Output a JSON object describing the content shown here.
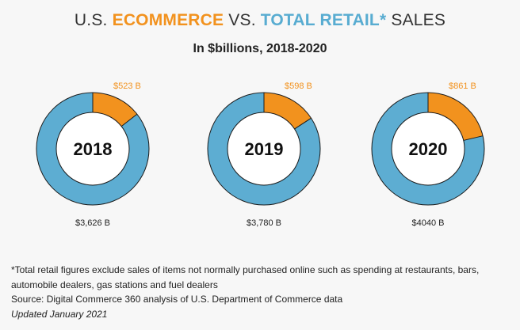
{
  "title": {
    "prefix": "U.S. ",
    "ecommerce": "ECOMMERCE",
    "vs": " VS. ",
    "total_retail": "TOTAL RETAIL*",
    "suffix": " SALES"
  },
  "subtitle": "In $billions, 2018-2020",
  "colors": {
    "ecommerce": "#f2921e",
    "retail": "#5dadd2",
    "outline": "#1a1a1a"
  },
  "chart_data": {
    "type": "pie",
    "title": "U.S. ECOMMERCE VS. TOTAL RETAIL* SALES",
    "subtitle": "In $billions, 2018-2020",
    "charts": [
      {
        "year": "2018",
        "ecommerce": 523,
        "total_retail": 3626,
        "ecommerce_label": "$523 B",
        "retail_label": "$3,626 B"
      },
      {
        "year": "2019",
        "ecommerce": 598,
        "total_retail": 3780,
        "ecommerce_label": "$598 B",
        "retail_label": "$3,780 B"
      },
      {
        "year": "2020",
        "ecommerce": 861,
        "total_retail": 4040,
        "ecommerce_label": "$861 B",
        "retail_label": "$4040 B"
      }
    ]
  },
  "notes": {
    "footnote": "*Total retail figures exclude sales of items not normally purchased online such as spending at restaurants, bars, automobile dealers, gas stations and fuel dealers",
    "source": "Source: Digital Commerce 360 analysis of U.S. Department of Commerce data",
    "updated": "Updated January 2021"
  }
}
